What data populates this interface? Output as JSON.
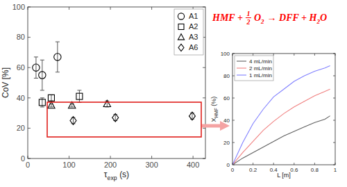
{
  "equation": {
    "reactant": "HMF +",
    "coefficient": {
      "numerator": "1",
      "denominator": "2"
    },
    "oxidant": "O",
    "oxidant_subscript": "2",
    "products": "→ DFF + H",
    "water_subscript": "2",
    "water_end": "O",
    "color": "#ff0000"
  },
  "chart_data": [
    {
      "type": "scatter",
      "xlabel": {
        "symbol": "τ",
        "subscript": "exp",
        "unit": "(s)"
      },
      "ylabel": "CoV [%]",
      "xlim": [
        0,
        430
      ],
      "ylim": [
        0,
        100
      ],
      "xticks": [
        0,
        100,
        200,
        300,
        400
      ],
      "yticks": [
        0,
        20,
        40,
        60,
        80,
        100
      ],
      "legend": "upper right",
      "series": [
        {
          "name": "A1",
          "marker": "circle",
          "color": "#000000",
          "x": [
            20,
            35,
            72
          ],
          "values": [
            60,
            55,
            67
          ],
          "errors": [
            7,
            10,
            10
          ]
        },
        {
          "name": "A2",
          "marker": "square",
          "color": "#000000",
          "x": [
            35,
            57,
            125
          ],
          "values": [
            37,
            40,
            41
          ],
          "errors": [
            3,
            2,
            4
          ]
        },
        {
          "name": "A3",
          "marker": "triangle",
          "color": "#000000",
          "x": [
            57,
            107,
            192
          ],
          "values": [
            35,
            35,
            36
          ],
          "errors": [
            1,
            1,
            2
          ]
        },
        {
          "name": "A6",
          "marker": "diamond",
          "color": "#000000",
          "x": [
            110,
            212,
            398
          ],
          "values": [
            25,
            27,
            28
          ],
          "errors": [
            2,
            2,
            2
          ]
        }
      ]
    },
    {
      "type": "line",
      "xlabel": {
        "symbol": "L [m]"
      },
      "ylabel": {
        "symbol": "X",
        "subscript": "HMF",
        "unit": "(%)"
      },
      "xlim": [
        0,
        1
      ],
      "ylim": [
        0,
        100
      ],
      "xticks": [
        0,
        0.2,
        0.4,
        0.6,
        0.8,
        1
      ],
      "yticks": [
        0,
        20,
        40,
        60,
        80,
        100
      ],
      "legend": "upper left",
      "x": [
        0,
        0.1,
        0.2,
        0.3,
        0.4,
        0.5,
        0.6,
        0.7,
        0.8,
        0.9,
        0.95
      ],
      "series": [
        {
          "name": "4 mL/min",
          "color": "#606060",
          "values": [
            0,
            6,
            11,
            16,
            21,
            26,
            30,
            34,
            38,
            41,
            44
          ]
        },
        {
          "name": "2 mL/min",
          "color": "#f08080",
          "values": [
            0,
            11,
            21,
            31,
            39,
            46,
            52,
            57,
            62,
            66,
            68
          ]
        },
        {
          "name": "1 mL/min",
          "color": "#8080ff",
          "values": [
            0,
            20,
            37,
            50,
            61,
            68,
            75,
            80,
            84,
            87,
            89
          ]
        }
      ]
    }
  ]
}
